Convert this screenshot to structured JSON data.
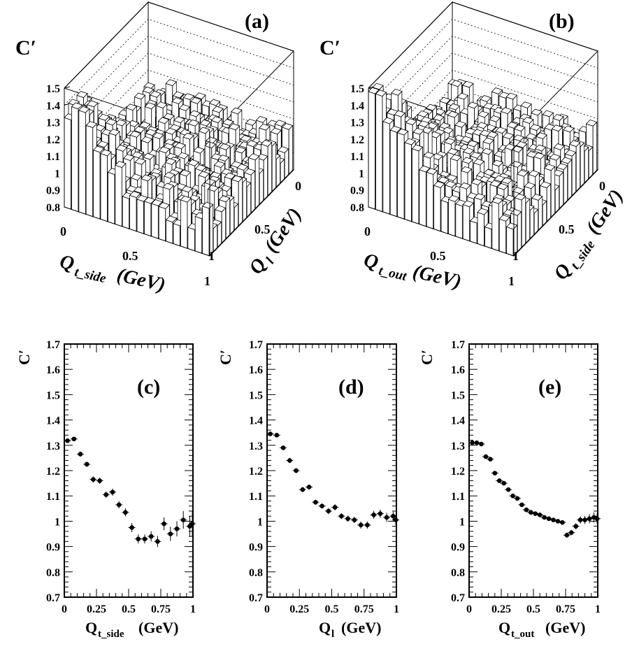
{
  "panels_3d": [
    {
      "id": "a",
      "label": "(a)",
      "ylabel": "C′",
      "z_ticks": [
        "1.5",
        "1.4",
        "1.3",
        "1.2",
        "1.1",
        "1",
        "0.9",
        "0.8"
      ],
      "x_title_main": "Q",
      "x_title_sub": "t_side",
      "x_title_unit": "(GeV)",
      "x_ticks": [
        "0",
        "0.5",
        "1"
      ],
      "y_title_main": "Q",
      "y_title_sub": "l",
      "y_title_unit": "(GeV)",
      "y_ticks": [
        "0",
        "0.5",
        "1"
      ]
    },
    {
      "id": "b",
      "label": "(b)",
      "ylabel": "C′",
      "z_ticks": [
        "1.5",
        "1.4",
        "1.3",
        "1.2",
        "1.1",
        "1",
        "0.9",
        "0.8"
      ],
      "x_title_main": "Q",
      "x_title_sub": "t_out",
      "x_title_unit": "(GeV)",
      "x_ticks": [
        "0",
        "0.5",
        "1"
      ],
      "y_title_main": "Q",
      "y_title_sub": "t_side",
      "y_title_unit": "(GeV)",
      "y_ticks": [
        "0",
        "0.5",
        "1"
      ]
    }
  ],
  "chart_data": [
    {
      "type": "scatter",
      "label": "(c)",
      "ylabel": "C′",
      "xlabel_main": "Q",
      "xlabel_sub": "t_side",
      "xlabel_unit": "(GeV)",
      "xlim": [
        0,
        1
      ],
      "ylim": [
        0.7,
        1.7
      ],
      "x_ticks": [
        "0",
        "0.25",
        "0.5",
        "0.75",
        "1"
      ],
      "y_ticks": [
        "0.7",
        "0.8",
        "0.9",
        "1",
        "1.1",
        "1.2",
        "1.3",
        "1.4",
        "1.5",
        "1.6",
        "1.7"
      ],
      "x": [
        0.025,
        0.075,
        0.125,
        0.175,
        0.225,
        0.275,
        0.325,
        0.375,
        0.425,
        0.475,
        0.525,
        0.575,
        0.625,
        0.675,
        0.725,
        0.775,
        0.825,
        0.875,
        0.925,
        0.975,
        0.995
      ],
      "y": [
        1.318,
        1.325,
        1.265,
        1.225,
        1.165,
        1.16,
        1.105,
        1.115,
        1.065,
        1.035,
        0.975,
        0.93,
        0.93,
        0.94,
        0.92,
        0.99,
        0.95,
        0.97,
        1.005,
        0.98,
        0.99
      ],
      "err": [
        0.008,
        0.008,
        0.01,
        0.01,
        0.012,
        0.012,
        0.012,
        0.014,
        0.014,
        0.016,
        0.018,
        0.018,
        0.018,
        0.02,
        0.022,
        0.025,
        0.028,
        0.03,
        0.035,
        0.04,
        0.05
      ]
    },
    {
      "type": "scatter",
      "label": "(d)",
      "ylabel": "C′",
      "xlabel_main": "Q",
      "xlabel_sub": "l",
      "xlabel_unit": "(GeV)",
      "xlim": [
        0,
        1
      ],
      "ylim": [
        0.7,
        1.7
      ],
      "x_ticks": [
        "0",
        "0.25",
        "0.5",
        "0.75",
        "1"
      ],
      "y_ticks": [
        "0.7",
        "0.8",
        "0.9",
        "1",
        "1.1",
        "1.2",
        "1.3",
        "1.4",
        "1.5",
        "1.6",
        "1.7"
      ],
      "x": [
        0.025,
        0.075,
        0.125,
        0.175,
        0.225,
        0.275,
        0.325,
        0.375,
        0.425,
        0.475,
        0.525,
        0.575,
        0.625,
        0.675,
        0.725,
        0.775,
        0.825,
        0.875,
        0.925,
        0.975,
        0.995
      ],
      "y": [
        1.345,
        1.34,
        1.29,
        1.24,
        1.2,
        1.125,
        1.135,
        1.075,
        1.06,
        1.04,
        1.055,
        1.02,
        1.01,
        1.005,
        0.985,
        0.985,
        1.025,
        1.03,
        1.015,
        1.02,
        1.005
      ],
      "err": [
        0.008,
        0.008,
        0.008,
        0.01,
        0.01,
        0.01,
        0.01,
        0.01,
        0.01,
        0.012,
        0.012,
        0.012,
        0.012,
        0.012,
        0.014,
        0.014,
        0.016,
        0.016,
        0.018,
        0.018,
        0.02
      ]
    },
    {
      "type": "scatter",
      "label": "(e)",
      "ylabel": "C′",
      "xlabel_main": "Q",
      "xlabel_sub": "t_out",
      "xlabel_unit": "(GeV)",
      "xlim": [
        0,
        1
      ],
      "ylim": [
        0.7,
        1.7
      ],
      "x_ticks": [
        "0",
        "0.25",
        "0.5",
        "0.75",
        "1"
      ],
      "y_ticks": [
        "0.7",
        "0.8",
        "0.9",
        "1",
        "1.1",
        "1.2",
        "1.3",
        "1.4",
        "1.5",
        "1.6",
        "1.7"
      ],
      "x": [
        0.025,
        0.06,
        0.095,
        0.13,
        0.165,
        0.2,
        0.235,
        0.27,
        0.305,
        0.34,
        0.375,
        0.41,
        0.445,
        0.48,
        0.515,
        0.55,
        0.585,
        0.62,
        0.655,
        0.69,
        0.725,
        0.76,
        0.795,
        0.83,
        0.865,
        0.9,
        0.935,
        0.97,
        0.995
      ],
      "y": [
        1.31,
        1.31,
        1.305,
        1.255,
        1.245,
        1.19,
        1.16,
        1.15,
        1.125,
        1.1,
        1.09,
        1.065,
        1.045,
        1.035,
        1.03,
        1.025,
        1.015,
        1.01,
        1.005,
        1.0,
        0.995,
        0.945,
        0.955,
        0.98,
        1.005,
        1.005,
        1.01,
        1.015,
        1.01
      ],
      "err": [
        0.007,
        0.007,
        0.007,
        0.007,
        0.008,
        0.008,
        0.008,
        0.008,
        0.008,
        0.008,
        0.008,
        0.008,
        0.008,
        0.008,
        0.008,
        0.008,
        0.008,
        0.008,
        0.008,
        0.008,
        0.008,
        0.01,
        0.01,
        0.012,
        0.014,
        0.016,
        0.018,
        0.02,
        0.022
      ]
    }
  ]
}
